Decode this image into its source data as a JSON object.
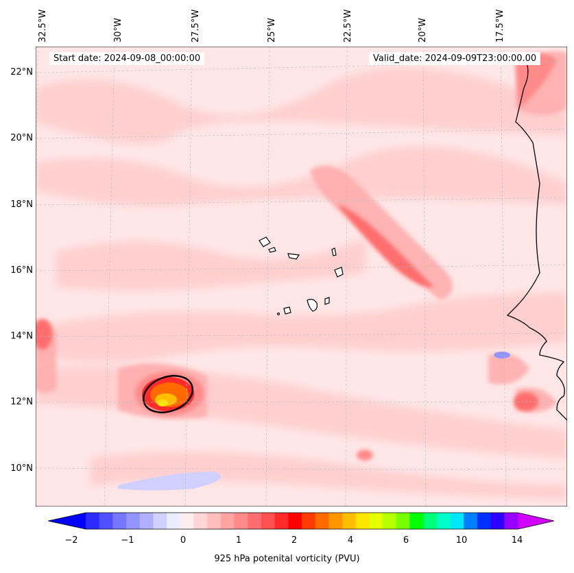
{
  "map": {
    "start_date": "Start date: 2024-09-08_00:00:00",
    "valid_date": "Valid_date: 2024-09-09T23:00:00.00",
    "lon_labels": [
      "32.5°W",
      "30°W",
      "27.5°W",
      "25°W",
      "22.5°W",
      "20°W",
      "17.5°W"
    ],
    "lat_labels": [
      "22°N",
      "20°N",
      "18°N",
      "16°N",
      "14°N",
      "12°N",
      "10°N"
    ],
    "coastline_color": "#000000",
    "gridlines": true
  },
  "colorbar": {
    "label": "925 hPa potenital vorticity (PVU)",
    "ticks": [
      "−2",
      "−1",
      "0",
      "1",
      "2",
      "4",
      "6",
      "10",
      "14"
    ],
    "colors": [
      "#0000ff",
      "#2b2bff",
      "#5050ff",
      "#7676ff",
      "#9494ff",
      "#b0b0ff",
      "#d0d0ff",
      "#ececff",
      "#ffecec",
      "#ffd6d6",
      "#ffbdbd",
      "#ffa3a3",
      "#ff8a8a",
      "#ff6e6e",
      "#ff4f4f",
      "#ff2a2a",
      "#ff0000",
      "#ff3c00",
      "#ff6a00",
      "#ff9600",
      "#ffbe00",
      "#ffe600",
      "#e6ff00",
      "#b4ff00",
      "#78ff00",
      "#00ff00",
      "#00ff78",
      "#00ffc8",
      "#00e6ff",
      "#0080ff",
      "#0030ff",
      "#3000ff",
      "#9600ff",
      "#d000ff"
    ]
  }
}
